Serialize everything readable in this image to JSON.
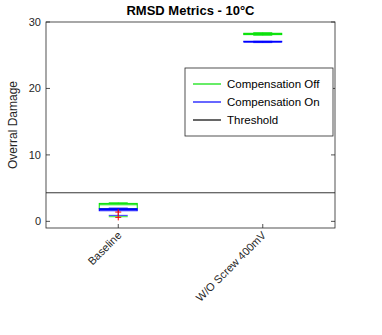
{
  "chart_data": {
    "type": "box",
    "title": "RMSD Metrics - 10°C",
    "y_label": "Overral Damage",
    "categories": [
      "Baseline",
      "W/O Screw 400mV"
    ],
    "series": [
      {
        "name": "Compensation Off",
        "color": "#00e000",
        "min": [
          0.7,
          28.0
        ],
        "q1": [
          1.9,
          28.1
        ],
        "median": [
          2.5,
          28.2
        ],
        "q3": [
          2.7,
          28.3
        ],
        "max": [
          2.8,
          28.4
        ],
        "outliers": [
          [],
          []
        ]
      },
      {
        "name": "Compensation On",
        "color": "#0000ff",
        "min": [
          0.9,
          26.9
        ],
        "q1": [
          1.6,
          27.0
        ],
        "median": [
          1.8,
          27.0
        ],
        "q3": [
          1.9,
          27.1
        ],
        "max": [
          2.0,
          27.1
        ],
        "outliers": [
          [
            1.4,
            0.6
          ],
          []
        ]
      }
    ],
    "threshold": {
      "name": "Threshold",
      "value": 4.3,
      "color": "#000000"
    },
    "ylim": [
      -1,
      30
    ],
    "yticks": [
      0,
      10,
      20,
      30
    ],
    "legend": "northeast",
    "grid": false
  }
}
